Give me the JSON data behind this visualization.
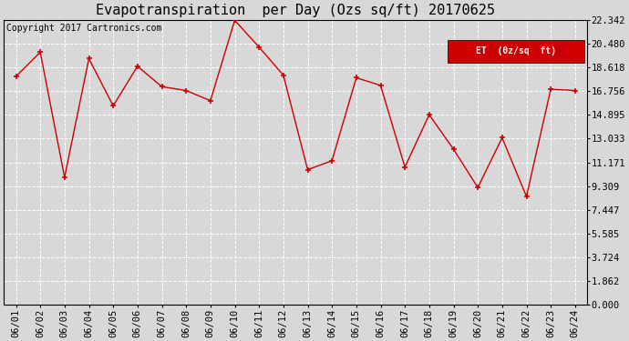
{
  "title": "Evapotranspiration  per Day (Ozs sq/ft) 20170625",
  "copyright_text": "Copyright 2017 Cartronics.com",
  "legend_label": "ET  (0z/sq  ft)",
  "x_labels": [
    "06/01",
    "06/02",
    "06/03",
    "06/04",
    "06/05",
    "06/06",
    "06/07",
    "06/08",
    "06/09",
    "06/10",
    "06/11",
    "06/12",
    "06/13",
    "06/14",
    "06/15",
    "06/16",
    "06/17",
    "06/18",
    "06/19",
    "06/20",
    "06/21",
    "06/22",
    "06/23",
    "06/24"
  ],
  "y_values": [
    17.9,
    19.8,
    10.0,
    19.3,
    15.6,
    18.7,
    17.1,
    16.8,
    16.0,
    22.3,
    20.2,
    18.0,
    10.6,
    11.3,
    17.8,
    17.2,
    10.8,
    14.9,
    12.2,
    9.2,
    13.1,
    8.5,
    16.9,
    16.8
  ],
  "y_ticks": [
    0.0,
    1.862,
    3.724,
    5.585,
    7.447,
    9.309,
    11.171,
    13.033,
    14.895,
    16.756,
    18.618,
    20.48,
    22.342
  ],
  "y_min": 0.0,
  "y_max": 22.342,
  "line_color": "#cc0000",
  "marker_color": "#cc0000",
  "background_color": "#d8d8d8",
  "grid_color": "#ffffff",
  "title_fontsize": 11,
  "copyright_fontsize": 7,
  "tick_fontsize": 7.5,
  "legend_bg_color": "#cc0000",
  "legend_text_color": "#ffffff"
}
